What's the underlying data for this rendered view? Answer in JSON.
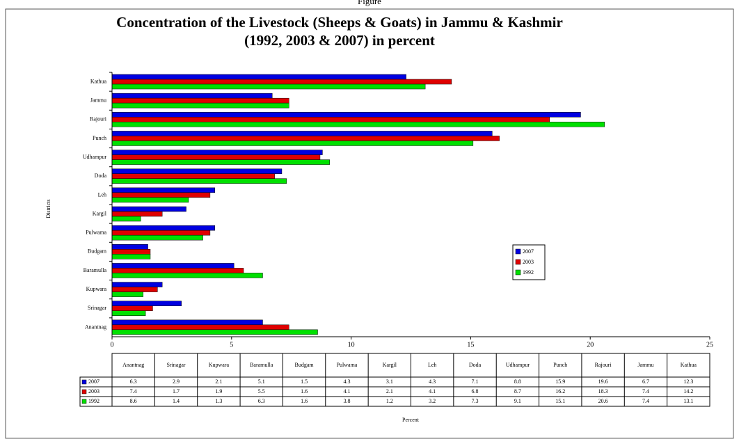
{
  "caption": "Figure",
  "chart_data": {
    "type": "hbar",
    "title": [
      "Concentration of the Livestock (Sheeps & Goats) in Jammu & Kashmir",
      "(1992, 2003 & 2007) in percent"
    ],
    "xlabel": "Percent",
    "ylabel": "Districts",
    "categories": [
      "Anantnag",
      "Srinagar",
      "Kupwara",
      "Baramulla",
      "Budgam",
      "Pulwama",
      "Kargil",
      "Leh",
      "Doda",
      "Udhampur",
      "Punch",
      "Rajouri",
      "Jammu",
      "Kathua"
    ],
    "series": [
      {
        "name": "2007",
        "color": "#0000e0",
        "values": [
          6.3,
          2.9,
          2.1,
          5.1,
          1.5,
          4.3,
          3.1,
          4.3,
          7.1,
          8.8,
          15.9,
          19.6,
          6.7,
          12.3
        ]
      },
      {
        "name": "2003",
        "color": "#e00000",
        "values": [
          7.4,
          1.7,
          1.9,
          5.5,
          1.6,
          4.1,
          2.1,
          4.1,
          6.8,
          8.7,
          16.2,
          18.3,
          7.4,
          14.2
        ]
      },
      {
        "name": "1992",
        "color": "#00e000",
        "values": [
          8.6,
          1.4,
          1.3,
          6.3,
          1.6,
          3.8,
          1.2,
          3.2,
          7.3,
          9.1,
          15.1,
          20.6,
          7.4,
          13.1
        ]
      }
    ],
    "xlim": [
      0,
      25
    ],
    "xticks": [
      0,
      5,
      10,
      15,
      20,
      25
    ],
    "legend": "right"
  }
}
